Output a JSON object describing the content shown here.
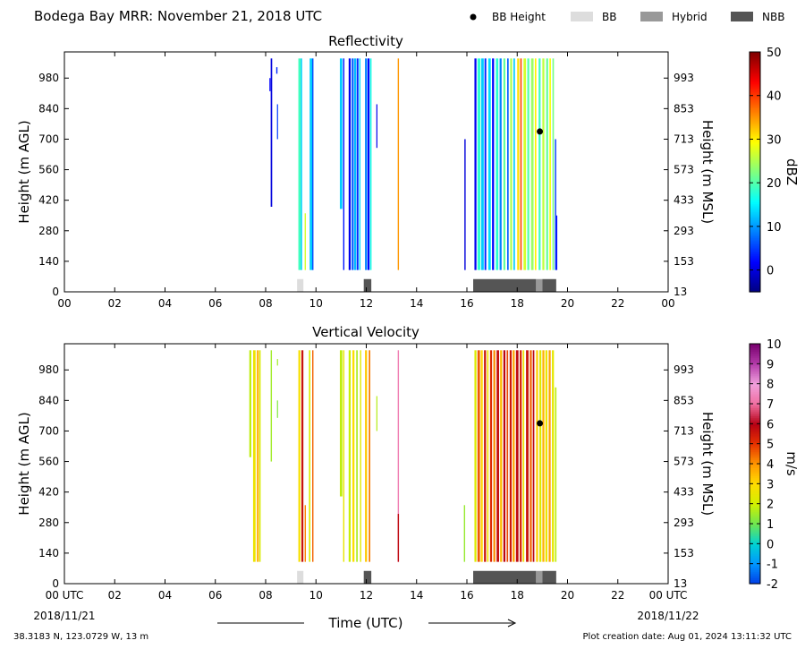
{
  "header": {
    "title": "Bodega Bay MRR:  November 21, 2018 UTC",
    "legend": [
      {
        "label": "BB Height",
        "kind": "dot",
        "color": "#000000"
      },
      {
        "label": "BB",
        "kind": "box",
        "color": "#dddddd"
      },
      {
        "label": "Hybrid",
        "kind": "box",
        "color": "#999999"
      },
      {
        "label": "NBB",
        "kind": "box",
        "color": "#555555"
      }
    ]
  },
  "footer": {
    "location": "38.3183 N, 123.0729 W, 13 m",
    "creation": "Plot creation date: Aug 01, 2024 13:11:32 UTC",
    "xlabel": "Time (UTC)",
    "start_date": "2018/11/21",
    "end_date": "2018/11/22"
  },
  "chart_data": [
    {
      "type": "heatmap",
      "title": "Reflectivity",
      "ylabel": "Height (m AGL)",
      "ylabel_right": "Height (m MSL)",
      "xlim": [
        0,
        24
      ],
      "ylim": [
        0,
        1100
      ],
      "x_ticks": [
        "00",
        "02",
        "04",
        "06",
        "08",
        "10",
        "12",
        "14",
        "16",
        "18",
        "20",
        "22",
        "00"
      ],
      "y_ticks": [
        0,
        140,
        280,
        420,
        560,
        700,
        840,
        980
      ],
      "y_ticks_right": [
        "13",
        "153",
        "293",
        "433",
        "573",
        "713",
        "853",
        "993"
      ],
      "colorbar": {
        "label": "dBZ",
        "min": -5,
        "max": 50,
        "ticks": [
          0,
          10,
          20,
          30,
          40,
          50
        ]
      },
      "bb_height": [
        {
          "time": 18.9,
          "height": 735
        }
      ],
      "bb_bars": [
        {
          "start": 9.25,
          "end": 9.5,
          "class": "BB"
        },
        {
          "start": 11.9,
          "end": 12.2,
          "class": "NBB"
        },
        {
          "start": 16.25,
          "end": 18.75,
          "class": "NBB"
        },
        {
          "start": 18.75,
          "end": 19.0,
          "class": "Hybrid"
        },
        {
          "start": 19.0,
          "end": 19.55,
          "class": "NBB"
        }
      ],
      "streaks": [
        {
          "t": 8.2,
          "w": 0.06,
          "y0": 390,
          "y1": 1070,
          "v": 0
        },
        {
          "t": 8.15,
          "w": 0.04,
          "y0": 920,
          "y1": 980,
          "v": 2
        },
        {
          "t": 8.42,
          "w": 0.05,
          "y0": 1000,
          "y1": 1030,
          "v": 4
        },
        {
          "t": 8.45,
          "w": 0.03,
          "y0": 700,
          "y1": 860,
          "v": 5
        },
        {
          "t": 9.3,
          "w": 0.1,
          "y0": 100,
          "y1": 1070,
          "v": 19
        },
        {
          "t": 9.4,
          "w": 0.05,
          "y0": 100,
          "y1": 1070,
          "v": 13
        },
        {
          "t": 9.55,
          "w": 0.05,
          "y0": 100,
          "y1": 360,
          "v": 27
        },
        {
          "t": 9.75,
          "w": 0.1,
          "y0": 100,
          "y1": 1070,
          "v": 13
        },
        {
          "t": 9.85,
          "w": 0.05,
          "y0": 100,
          "y1": 1070,
          "v": 6
        },
        {
          "t": 10.95,
          "w": 0.1,
          "y0": 380,
          "y1": 1070,
          "v": 13
        },
        {
          "t": 11.08,
          "w": 0.05,
          "y0": 100,
          "y1": 1070,
          "v": 3
        },
        {
          "t": 11.3,
          "w": 0.08,
          "y0": 100,
          "y1": 1070,
          "v": 1
        },
        {
          "t": 11.42,
          "w": 0.08,
          "y0": 100,
          "y1": 1070,
          "v": 7
        },
        {
          "t": 11.52,
          "w": 0.08,
          "y0": 100,
          "y1": 1070,
          "v": 12
        },
        {
          "t": 11.62,
          "w": 0.07,
          "y0": 100,
          "y1": 1070,
          "v": 4
        },
        {
          "t": 11.72,
          "w": 0.05,
          "y0": 100,
          "y1": 1070,
          "v": 14
        },
        {
          "t": 11.95,
          "w": 0.08,
          "y0": 100,
          "y1": 1070,
          "v": 9
        },
        {
          "t": 12.05,
          "w": 0.08,
          "y0": 100,
          "y1": 1070,
          "v": 2
        },
        {
          "t": 12.15,
          "w": 0.06,
          "y0": 100,
          "y1": 1070,
          "v": 17
        },
        {
          "t": 12.4,
          "w": 0.04,
          "y0": 660,
          "y1": 860,
          "v": 1
        },
        {
          "t": 13.25,
          "w": 0.05,
          "y0": 100,
          "y1": 1070,
          "v": 35
        },
        {
          "t": 15.9,
          "w": 0.05,
          "y0": 100,
          "y1": 700,
          "v": 0
        },
        {
          "t": 16.3,
          "w": 0.08,
          "y0": 100,
          "y1": 1070,
          "v": 1
        },
        {
          "t": 16.42,
          "w": 0.12,
          "y0": 100,
          "y1": 1070,
          "v": 18
        },
        {
          "t": 16.57,
          "w": 0.1,
          "y0": 100,
          "y1": 1070,
          "v": 13
        },
        {
          "t": 16.7,
          "w": 0.07,
          "y0": 100,
          "y1": 1070,
          "v": 4
        },
        {
          "t": 16.85,
          "w": 0.1,
          "y0": 100,
          "y1": 1070,
          "v": 14
        },
        {
          "t": 17.0,
          "w": 0.08,
          "y0": 100,
          "y1": 1070,
          "v": 2
        },
        {
          "t": 17.15,
          "w": 0.1,
          "y0": 100,
          "y1": 1070,
          "v": 18
        },
        {
          "t": 17.3,
          "w": 0.08,
          "y0": 100,
          "y1": 1070,
          "v": 9
        },
        {
          "t": 17.45,
          "w": 0.08,
          "y0": 100,
          "y1": 1070,
          "v": 21
        },
        {
          "t": 17.6,
          "w": 0.06,
          "y0": 100,
          "y1": 1070,
          "v": 7
        },
        {
          "t": 17.72,
          "w": 0.08,
          "y0": 100,
          "y1": 1070,
          "v": 25
        },
        {
          "t": 17.85,
          "w": 0.06,
          "y0": 100,
          "y1": 1070,
          "v": 13
        },
        {
          "t": 18.0,
          "w": 0.08,
          "y0": 100,
          "y1": 1070,
          "v": 31
        },
        {
          "t": 18.12,
          "w": 0.06,
          "y0": 100,
          "y1": 1070,
          "v": 39
        },
        {
          "t": 18.25,
          "w": 0.1,
          "y0": 100,
          "y1": 1070,
          "v": 27
        },
        {
          "t": 18.4,
          "w": 0.08,
          "y0": 100,
          "y1": 1070,
          "v": 20
        },
        {
          "t": 18.55,
          "w": 0.1,
          "y0": 100,
          "y1": 1070,
          "v": 24
        },
        {
          "t": 18.7,
          "w": 0.06,
          "y0": 100,
          "y1": 1070,
          "v": 30
        },
        {
          "t": 18.85,
          "w": 0.08,
          "y0": 100,
          "y1": 1070,
          "v": 19
        },
        {
          "t": 19.0,
          "w": 0.08,
          "y0": 100,
          "y1": 1070,
          "v": 26
        },
        {
          "t": 19.15,
          "w": 0.08,
          "y0": 100,
          "y1": 1070,
          "v": 21
        },
        {
          "t": 19.28,
          "w": 0.06,
          "y0": 100,
          "y1": 1070,
          "v": 29
        },
        {
          "t": 19.4,
          "w": 0.06,
          "y0": 100,
          "y1": 1070,
          "v": 22
        },
        {
          "t": 19.5,
          "w": 0.05,
          "y0": 100,
          "y1": 700,
          "v": 5
        },
        {
          "t": 19.55,
          "w": 0.04,
          "y0": 100,
          "y1": 350,
          "v": 2
        }
      ]
    },
    {
      "type": "heatmap",
      "title": "Vertical Velocity",
      "ylabel": "Height (m AGL)",
      "ylabel_right": "Height (m MSL)",
      "xlim": [
        0,
        24
      ],
      "ylim": [
        0,
        1100
      ],
      "x_ticks": [
        "00 UTC",
        "02",
        "04",
        "06",
        "08",
        "10",
        "12",
        "14",
        "16",
        "18",
        "20",
        "22",
        "00 UTC"
      ],
      "y_ticks": [
        0,
        140,
        280,
        420,
        560,
        700,
        840,
        980
      ],
      "y_ticks_right": [
        "13",
        "153",
        "293",
        "433",
        "573",
        "713",
        "853",
        "993"
      ],
      "colorbar": {
        "label": "m/s",
        "min": -2,
        "max": 10,
        "ticks": [
          -2,
          -1,
          0,
          1,
          2,
          3,
          4,
          5,
          6,
          7,
          8,
          9,
          10
        ]
      },
      "bb_height": [
        {
          "time": 18.9,
          "height": 735
        }
      ],
      "bb_bars": [
        {
          "start": 9.25,
          "end": 9.5,
          "class": "BB"
        },
        {
          "start": 11.9,
          "end": 12.2,
          "class": "NBB"
        },
        {
          "start": 16.25,
          "end": 18.75,
          "class": "NBB"
        },
        {
          "start": 18.75,
          "end": 19.0,
          "class": "Hybrid"
        },
        {
          "start": 19.0,
          "end": 19.55,
          "class": "NBB"
        }
      ],
      "streaks": [
        {
          "t": 7.35,
          "w": 0.08,
          "y0": 580,
          "y1": 1070,
          "v": 1.8
        },
        {
          "t": 7.5,
          "w": 0.1,
          "y0": 100,
          "y1": 1070,
          "v": 2.6
        },
        {
          "t": 7.65,
          "w": 0.08,
          "y0": 100,
          "y1": 1070,
          "v": 3.6
        },
        {
          "t": 7.75,
          "w": 0.05,
          "y0": 100,
          "y1": 1070,
          "v": 2.1
        },
        {
          "t": 8.2,
          "w": 0.05,
          "y0": 560,
          "y1": 1070,
          "v": 1.5
        },
        {
          "t": 8.45,
          "w": 0.04,
          "y0": 1000,
          "y1": 1030,
          "v": 1.5
        },
        {
          "t": 8.45,
          "w": 0.03,
          "y0": 760,
          "y1": 840,
          "v": 1.2
        },
        {
          "t": 9.3,
          "w": 0.08,
          "y0": 100,
          "y1": 1070,
          "v": 2.8
        },
        {
          "t": 9.42,
          "w": 0.08,
          "y0": 100,
          "y1": 1070,
          "v": 5.6
        },
        {
          "t": 9.55,
          "w": 0.05,
          "y0": 100,
          "y1": 360,
          "v": 4.2
        },
        {
          "t": 9.72,
          "w": 0.06,
          "y0": 100,
          "y1": 1070,
          "v": 2.2
        },
        {
          "t": 9.85,
          "w": 0.05,
          "y0": 100,
          "y1": 1070,
          "v": 4.5
        },
        {
          "t": 10.95,
          "w": 0.1,
          "y0": 400,
          "y1": 1070,
          "v": 1.8
        },
        {
          "t": 11.08,
          "w": 0.05,
          "y0": 100,
          "y1": 1070,
          "v": 2.5
        },
        {
          "t": 11.3,
          "w": 0.08,
          "y0": 100,
          "y1": 1070,
          "v": 1.9
        },
        {
          "t": 11.45,
          "w": 0.08,
          "y0": 100,
          "y1": 1070,
          "v": 2.9
        },
        {
          "t": 11.6,
          "w": 0.06,
          "y0": 100,
          "y1": 1070,
          "v": 1.6
        },
        {
          "t": 11.75,
          "w": 0.05,
          "y0": 100,
          "y1": 1070,
          "v": 2.3
        },
        {
          "t": 11.95,
          "w": 0.08,
          "y0": 100,
          "y1": 1070,
          "v": 3.3
        },
        {
          "t": 12.1,
          "w": 0.06,
          "y0": 100,
          "y1": 1070,
          "v": 4.3
        },
        {
          "t": 12.4,
          "w": 0.04,
          "y0": 700,
          "y1": 860,
          "v": 1.7
        },
        {
          "t": 13.25,
          "w": 0.05,
          "y0": 100,
          "y1": 1070,
          "v": 7.3
        },
        {
          "t": 13.25,
          "w": 0.05,
          "y0": 100,
          "y1": 320,
          "v": 5.8
        },
        {
          "t": 15.88,
          "w": 0.05,
          "y0": 100,
          "y1": 360,
          "v": 1.4
        },
        {
          "t": 16.3,
          "w": 0.08,
          "y0": 100,
          "y1": 1070,
          "v": 2.2
        },
        {
          "t": 16.42,
          "w": 0.1,
          "y0": 100,
          "y1": 1070,
          "v": 4.6
        },
        {
          "t": 16.55,
          "w": 0.08,
          "y0": 100,
          "y1": 1070,
          "v": 3.1
        },
        {
          "t": 16.68,
          "w": 0.08,
          "y0": 100,
          "y1": 1070,
          "v": 5.6
        },
        {
          "t": 16.8,
          "w": 0.06,
          "y0": 100,
          "y1": 1070,
          "v": 2.7
        },
        {
          "t": 16.92,
          "w": 0.08,
          "y0": 100,
          "y1": 1070,
          "v": 5.2
        },
        {
          "t": 17.05,
          "w": 0.08,
          "y0": 100,
          "y1": 1070,
          "v": 4.1
        },
        {
          "t": 17.18,
          "w": 0.1,
          "y0": 100,
          "y1": 1070,
          "v": 5.7
        },
        {
          "t": 17.32,
          "w": 0.08,
          "y0": 100,
          "y1": 1070,
          "v": 3.5
        },
        {
          "t": 17.45,
          "w": 0.08,
          "y0": 100,
          "y1": 1070,
          "v": 5.9
        },
        {
          "t": 17.58,
          "w": 0.06,
          "y0": 100,
          "y1": 1070,
          "v": 4.8
        },
        {
          "t": 17.7,
          "w": 0.08,
          "y0": 100,
          "y1": 1070,
          "v": 5.5
        },
        {
          "t": 17.82,
          "w": 0.08,
          "y0": 100,
          "y1": 1070,
          "v": 3.8
        },
        {
          "t": 17.95,
          "w": 0.1,
          "y0": 100,
          "y1": 1070,
          "v": 5.8
        },
        {
          "t": 18.1,
          "w": 0.08,
          "y0": 100,
          "y1": 1070,
          "v": 5.3
        },
        {
          "t": 18.22,
          "w": 0.06,
          "y0": 100,
          "y1": 1070,
          "v": 2.6
        },
        {
          "t": 18.35,
          "w": 0.1,
          "y0": 100,
          "y1": 1070,
          "v": 5.6
        },
        {
          "t": 18.5,
          "w": 0.08,
          "y0": 100,
          "y1": 1070,
          "v": 4.5
        },
        {
          "t": 18.62,
          "w": 0.06,
          "y0": 100,
          "y1": 1070,
          "v": 5.9
        },
        {
          "t": 18.75,
          "w": 0.08,
          "y0": 100,
          "y1": 1070,
          "v": 3.2
        },
        {
          "t": 18.88,
          "w": 0.08,
          "y0": 100,
          "y1": 1070,
          "v": 2.2
        },
        {
          "t": 19.0,
          "w": 0.08,
          "y0": 100,
          "y1": 1070,
          "v": 3.6
        },
        {
          "t": 19.12,
          "w": 0.08,
          "y0": 100,
          "y1": 1070,
          "v": 2.5
        },
        {
          "t": 19.25,
          "w": 0.08,
          "y0": 100,
          "y1": 1070,
          "v": 3.9
        },
        {
          "t": 19.38,
          "w": 0.08,
          "y0": 100,
          "y1": 1070,
          "v": 2.4
        },
        {
          "t": 19.5,
          "w": 0.06,
          "y0": 100,
          "y1": 900,
          "v": 1.8
        }
      ]
    }
  ]
}
